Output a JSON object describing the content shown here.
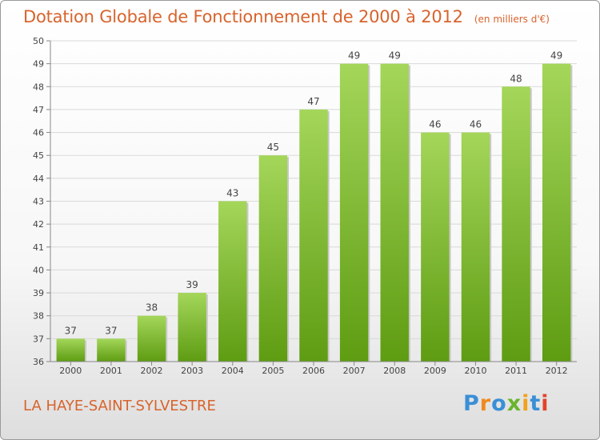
{
  "title": "Dotation Globale de Fonctionnement de 2000 à 2012",
  "unit_label": "(en milliers d'€)",
  "commune": "LA HAYE-SAINT-SYLVESTRE",
  "logo": {
    "letters": [
      "P",
      "r",
      "o",
      "x",
      "i",
      "t",
      "i"
    ],
    "colors": [
      "#3a8fd6",
      "#f08a1d",
      "#3a8fd6",
      "#6ab42d",
      "#f0a21d",
      "#3a8fd6",
      "#e2432a"
    ]
  },
  "colors": {
    "bar": "#7fba30",
    "bar_light": "#a4d65a",
    "bar_dark": "#5e9c12",
    "text": "#d8632c"
  },
  "chart_data": {
    "type": "bar",
    "title": "Dotation Globale de Fonctionnement de 2000 à 2012",
    "ylabel": "",
    "xlabel": "",
    "categories": [
      "2000",
      "2001",
      "2002",
      "2003",
      "2004",
      "2005",
      "2006",
      "2007",
      "2008",
      "2009",
      "2010",
      "2011",
      "2012"
    ],
    "values": [
      37,
      37,
      38,
      39,
      43,
      45,
      47,
      49,
      49,
      46,
      46,
      48,
      49
    ],
    "ylim": [
      36,
      50
    ],
    "yticks": [
      36,
      37,
      38,
      39,
      40,
      41,
      42,
      43,
      44,
      45,
      46,
      47,
      48,
      49,
      50
    ],
    "grid": true,
    "data_labels": true
  }
}
